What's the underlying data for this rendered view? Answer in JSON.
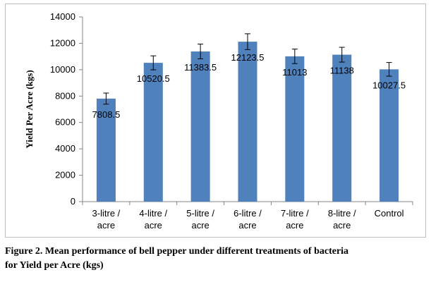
{
  "chart_data": {
    "type": "bar",
    "ylabel": "Yield Per Acre (kgs)",
    "xlabel": "",
    "ylim": [
      0,
      14000
    ],
    "yticks": [
      "0",
      "2000",
      "4000",
      "6000",
      "8000",
      "10000",
      "12000",
      "14000"
    ],
    "ytick_values": [
      0,
      2000,
      4000,
      6000,
      8000,
      10000,
      12000,
      14000
    ],
    "grid": false,
    "legend": "none",
    "bar_color": "#4f81bd",
    "categories": [
      [
        "3-litre /",
        "acre"
      ],
      [
        "4-litre /",
        "acre"
      ],
      [
        "5-litre /",
        "acre"
      ],
      [
        "6-litre /",
        "acre"
      ],
      [
        "7-litre /",
        "acre"
      ],
      [
        "8-litre /",
        "acre"
      ],
      [
        "Control"
      ]
    ],
    "values": [
      7808.5,
      10520.5,
      11383.5,
      12123.5,
      11013,
      11138,
      10027.5
    ],
    "labels": [
      "7808.5",
      "10520.5",
      "11383.5",
      "12123.5",
      "11013",
      "11138",
      "10027.5"
    ],
    "error": [
      420,
      530,
      560,
      600,
      550,
      560,
      520
    ]
  },
  "caption": {
    "line1": "Figure 2. Mean performance of bell pepper under different treatments of bacteria",
    "line2": "for Yield per Acre (kgs)"
  }
}
